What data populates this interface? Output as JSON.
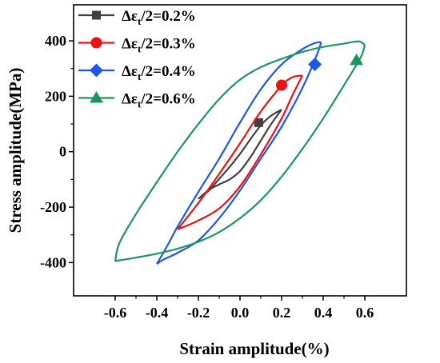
{
  "chart_data": {
    "type": "line",
    "xlabel": "Strain amplitude(%)",
    "ylabel": "Stress amplitude(MPa)",
    "xlim": [
      -0.8,
      0.8
    ],
    "ylim": [
      -520,
      530
    ],
    "x_ticks": [
      -0.6,
      -0.4,
      -0.2,
      0.0,
      0.2,
      0.4,
      0.6
    ],
    "x_tick_labels": [
      "-0.6",
      "-0.4",
      "-0.2",
      "0.0",
      "0.2",
      "0.4",
      "0.6"
    ],
    "y_ticks": [
      -400,
      -200,
      0,
      200,
      400
    ],
    "y_tick_labels": [
      "-400",
      "-200",
      "0",
      "200",
      "400"
    ],
    "grid": false,
    "legend_placement": "top-left",
    "series": [
      {
        "name": "Δεt/2=0.2%",
        "label_prefix": "Δε",
        "label_sub": "t",
        "label_suffix": "/2=0.2%",
        "color": "#404040",
        "marker": "square",
        "marker_point": [
          0.09,
          105
        ],
        "upper": [
          [
            -0.2,
            -170
          ],
          [
            -0.15,
            -140
          ],
          [
            -0.1,
            -98
          ],
          [
            -0.05,
            -55
          ],
          [
            0.0,
            -8
          ],
          [
            0.05,
            45
          ],
          [
            0.1,
            95
          ],
          [
            0.15,
            130
          ],
          [
            0.2,
            152
          ]
        ],
        "lower": [
          [
            0.2,
            152
          ],
          [
            0.15,
            100
          ],
          [
            0.1,
            40
          ],
          [
            0.05,
            -20
          ],
          [
            0.0,
            -70
          ],
          [
            -0.05,
            -100
          ],
          [
            -0.1,
            -118
          ],
          [
            -0.15,
            -138
          ],
          [
            -0.2,
            -170
          ]
        ]
      },
      {
        "name": "Δεt/2=0.3%",
        "label_prefix": "Δε",
        "label_sub": "t",
        "label_suffix": "/2=0.3%",
        "color": "#ee1111",
        "marker": "circle",
        "marker_point": [
          0.2,
          240
        ],
        "upper": [
          [
            -0.3,
            -280
          ],
          [
            -0.2,
            -185
          ],
          [
            -0.1,
            -80
          ],
          [
            0.0,
            30
          ],
          [
            0.1,
            145
          ],
          [
            0.2,
            238
          ],
          [
            0.25,
            268
          ],
          [
            0.3,
            275
          ]
        ],
        "lower": [
          [
            0.3,
            275
          ],
          [
            0.25,
            200
          ],
          [
            0.2,
            120
          ],
          [
            0.1,
            -10
          ],
          [
            0.0,
            -125
          ],
          [
            -0.1,
            -205
          ],
          [
            -0.2,
            -248
          ],
          [
            -0.25,
            -265
          ],
          [
            -0.3,
            -280
          ]
        ]
      },
      {
        "name": "Δεt/2=0.4%",
        "label_prefix": "Δε",
        "label_sub": "t",
        "label_suffix": "/2=0.4%",
        "color": "#1f55e8",
        "marker": "diamond",
        "marker_point": [
          0.36,
          315
        ],
        "upper": [
          [
            -0.4,
            -405
          ],
          [
            -0.35,
            -340
          ],
          [
            -0.3,
            -270
          ],
          [
            -0.2,
            -145
          ],
          [
            -0.1,
            -25
          ],
          [
            0.0,
            105
          ],
          [
            0.1,
            225
          ],
          [
            0.2,
            315
          ],
          [
            0.3,
            370
          ],
          [
            0.36,
            392
          ],
          [
            0.39,
            395
          ]
        ],
        "lower": [
          [
            0.39,
            395
          ],
          [
            0.37,
            350
          ],
          [
            0.3,
            230
          ],
          [
            0.2,
            90
          ],
          [
            0.1,
            -25
          ],
          [
            0.0,
            -140
          ],
          [
            -0.1,
            -240
          ],
          [
            -0.2,
            -320
          ],
          [
            -0.3,
            -365
          ],
          [
            -0.37,
            -390
          ],
          [
            -0.4,
            -405
          ]
        ]
      },
      {
        "name": "Δεt/2=0.6%",
        "label_prefix": "Δε",
        "label_sub": "t",
        "label_suffix": "/2=0.6%",
        "color": "#1e9460",
        "marker": "triangle",
        "marker_point": [
          0.56,
          330
        ],
        "upper": [
          [
            -0.6,
            -395
          ],
          [
            -0.58,
            -330
          ],
          [
            -0.5,
            -225
          ],
          [
            -0.4,
            -110
          ],
          [
            -0.3,
            0
          ],
          [
            -0.2,
            100
          ],
          [
            -0.1,
            190
          ],
          [
            0.0,
            260
          ],
          [
            0.1,
            305
          ],
          [
            0.2,
            335
          ],
          [
            0.3,
            360
          ],
          [
            0.4,
            378
          ],
          [
            0.5,
            390
          ],
          [
            0.57,
            398
          ],
          [
            0.6,
            385
          ]
        ],
        "lower": [
          [
            0.6,
            385
          ],
          [
            0.58,
            340
          ],
          [
            0.5,
            240
          ],
          [
            0.4,
            120
          ],
          [
            0.3,
            10
          ],
          [
            0.2,
            -90
          ],
          [
            0.1,
            -175
          ],
          [
            0.0,
            -240
          ],
          [
            -0.1,
            -290
          ],
          [
            -0.2,
            -325
          ],
          [
            -0.3,
            -350
          ],
          [
            -0.4,
            -368
          ],
          [
            -0.5,
            -382
          ],
          [
            -0.58,
            -392
          ],
          [
            -0.6,
            -395
          ]
        ]
      }
    ]
  }
}
